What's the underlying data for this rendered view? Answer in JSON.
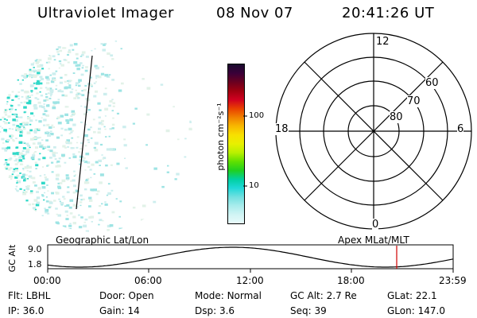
{
  "header": {
    "title": "Ultraviolet Imager",
    "date": "08 Nov 07",
    "time": "20:41:26 UT"
  },
  "colorbar": {
    "unit_label": "photon cm⁻²s⁻¹",
    "ticks": [
      "100",
      "10"
    ],
    "colors": [
      "#1a0a2e",
      "#3a0038",
      "#6a0020",
      "#a00010",
      "#d00020",
      "#e84000",
      "#f08000",
      "#f8b800",
      "#f8e000",
      "#e8f000",
      "#b8f000",
      "#60e000",
      "#20d020",
      "#00d0a0",
      "#20d8d8",
      "#70e0e0",
      "#a8ecec",
      "#d0f4f4",
      "#e8fafa"
    ]
  },
  "polar": {
    "top_label": "12",
    "bottom_label": "0",
    "left_label": "18",
    "right_label": "6",
    "ring_labels": [
      "60",
      "70",
      "80"
    ]
  },
  "strip": {
    "left_title": "Geographic Lat/Lon",
    "right_title": "Apex MLat/MLT",
    "y_label": "GC Alt",
    "y_ticks": [
      "9.0",
      "1.8"
    ],
    "x_ticks": [
      "00:00",
      "06:00",
      "12:00",
      "18:00",
      "23:59"
    ]
  },
  "info": {
    "row1": [
      {
        "key": "Flt:",
        "val": "LBHL"
      },
      {
        "key": "Door:",
        "val": "Open"
      },
      {
        "key": "Mode:",
        "val": "Normal"
      },
      {
        "key": "GC Alt:",
        "val": "2.7 Re"
      },
      {
        "key": "GLat:",
        "val": "22.1"
      }
    ],
    "row2": [
      {
        "key": "IP:",
        "val": "36.0"
      },
      {
        "key": "Gain:",
        "val": "14"
      },
      {
        "key": "Dsp:",
        "val": "3.6"
      },
      {
        "key": "Seq:",
        "val": "39"
      },
      {
        "key": "GLon:",
        "val": "147.0"
      }
    ]
  }
}
